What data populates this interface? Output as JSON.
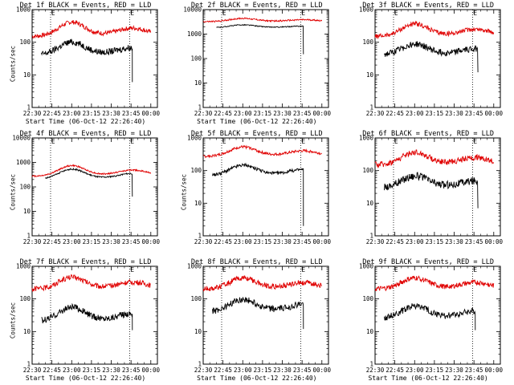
{
  "chart_data": [
    {
      "type": "line",
      "title": "Det 1f BLACK = Events, RED = LLD",
      "xlabel": "Start Time (06-Oct-12 22:26:40)",
      "ylabel": "Counts/sec",
      "yscale": "log",
      "ylim": [
        1,
        1000
      ],
      "x_ticks": [
        "22:30",
        "22:45",
        "23:00",
        "23:15",
        "23:30",
        "23:45",
        "00:00"
      ],
      "y_ticks": [
        "1",
        "10",
        "100",
        "1000"
      ],
      "markers": [
        "22:44",
        "23:44"
      ],
      "flag": "E",
      "series": [
        {
          "name": "LLD",
          "color": "#e00000",
          "start": "22:30",
          "end": "00:00",
          "base": 150,
          "amp": 2.6,
          "noise": 0.07
        },
        {
          "name": "Events",
          "color": "#000000",
          "start": "22:37",
          "end": "23:46",
          "base": 40,
          "amp": 2.4,
          "noise": 0.1,
          "drop": 6
        }
      ]
    },
    {
      "type": "line",
      "title": "Det 2f BLACK = Events, RED = LLD",
      "xlabel": "Start Time (06-Oct-12 22:26:40)",
      "ylabel": "",
      "yscale": "log",
      "ylim": [
        1,
        10000
      ],
      "x_ticks": [
        "22:30",
        "22:45",
        "23:00",
        "23:15",
        "23:30",
        "23:45",
        "00:00"
      ],
      "y_ticks": [
        "1",
        "10",
        "100",
        "1000",
        "10000"
      ],
      "markers": [
        "22:44",
        "23:44"
      ],
      "flag": "E",
      "series": [
        {
          "name": "LLD",
          "color": "#e00000",
          "start": "22:30",
          "end": "00:00",
          "base": 3200,
          "amp": 1.35,
          "noise": 0.03
        },
        {
          "name": "Events",
          "color": "#000000",
          "start": "22:40",
          "end": "23:46",
          "base": 1800,
          "amp": 1.3,
          "noise": 0.02,
          "drop": 150
        }
      ]
    },
    {
      "type": "line",
      "title": "Det 3f BLACK = Events, RED = LLD",
      "xlabel": "",
      "ylabel": "",
      "yscale": "log",
      "ylim": [
        1,
        1000
      ],
      "x_ticks": [
        "22:30",
        "22:45",
        "23:00",
        "23:15",
        "23:30",
        "23:45",
        "00:00"
      ],
      "y_ticks": [
        "1",
        "10",
        "100",
        "1000"
      ],
      "markers": [
        "22:44",
        "23:44"
      ],
      "flag": "E",
      "series": [
        {
          "name": "LLD",
          "color": "#e00000",
          "start": "22:30",
          "end": "00:00",
          "base": 150,
          "amp": 2.3,
          "noise": 0.07
        },
        {
          "name": "Events",
          "color": "#000000",
          "start": "22:37",
          "end": "23:48",
          "base": 40,
          "amp": 2.1,
          "noise": 0.1,
          "drop": 12
        }
      ]
    },
    {
      "type": "line",
      "title": "Det 4f BLACK = Events, RED = LLD",
      "xlabel": "",
      "ylabel": "Counts/sec",
      "yscale": "log",
      "ylim": [
        1,
        10000
      ],
      "x_ticks": [
        "22:30",
        "22:45",
        "23:00",
        "23:15",
        "23:30",
        "23:45",
        "00:00"
      ],
      "y_ticks": [
        "1",
        "10",
        "100",
        "1000",
        "10000"
      ],
      "markers": [
        "22:44",
        "23:44"
      ],
      "flag": "E",
      "series": [
        {
          "name": "LLD",
          "color": "#e00000",
          "start": "22:30",
          "end": "00:00",
          "base": 270,
          "amp": 2.6,
          "noise": 0.03
        },
        {
          "name": "Events",
          "color": "#000000",
          "start": "22:40",
          "end": "23:46",
          "base": 200,
          "amp": 2.5,
          "noise": 0.03,
          "drop": 40
        }
      ]
    },
    {
      "type": "line",
      "title": "Det 5f BLACK = Events, RED = LLD",
      "xlabel": "",
      "ylabel": "Counts/sec",
      "yscale": "log",
      "ylim": [
        1,
        1000
      ],
      "x_ticks": [
        "22:30",
        "22:45",
        "23:00",
        "23:15",
        "23:30",
        "23:45",
        "00:00"
      ],
      "y_ticks": [
        "1",
        "10",
        "100",
        "1000"
      ],
      "markers": [
        "22:44",
        "23:44"
      ],
      "flag": "E",
      "series": [
        {
          "name": "LLD",
          "color": "#e00000",
          "start": "22:30",
          "end": "00:00",
          "base": 270,
          "amp": 1.9,
          "noise": 0.04
        },
        {
          "name": "Events",
          "color": "#000000",
          "start": "22:37",
          "end": "23:46",
          "base": 70,
          "amp": 2.0,
          "noise": 0.05,
          "drop": 2
        }
      ]
    },
    {
      "type": "line",
      "title": "Det 6f BLACK = Events, RED = LLD",
      "xlabel": "",
      "ylabel": "",
      "yscale": "log",
      "ylim": [
        1,
        1000
      ],
      "x_ticks": [
        "22:30",
        "22:45",
        "23:00",
        "23:15",
        "23:30",
        "23:45",
        "00:00"
      ],
      "y_ticks": [
        "1",
        "10",
        "100",
        "1000"
      ],
      "markers": [
        "22:44",
        "23:44"
      ],
      "flag": "E",
      "series": [
        {
          "name": "LLD",
          "color": "#e00000",
          "start": "22:30",
          "end": "00:00",
          "base": 150,
          "amp": 2.3,
          "noise": 0.09
        },
        {
          "name": "Events",
          "color": "#000000",
          "start": "22:37",
          "end": "23:48",
          "base": 30,
          "amp": 2.2,
          "noise": 0.12,
          "drop": 7
        }
      ]
    },
    {
      "type": "line",
      "title": "Det 7f BLACK = Events, RED = LLD",
      "xlabel": "Start Time (06-Oct-12 22:26:40)",
      "ylabel": "Counts/sec",
      "yscale": "log",
      "ylim": [
        1,
        1000
      ],
      "x_ticks": [
        "22:30",
        "22:45",
        "23:00",
        "23:15",
        "23:30",
        "23:45",
        "00:00"
      ],
      "y_ticks": [
        "1",
        "10",
        "100",
        "1000"
      ],
      "markers": [
        "22:44",
        "23:44"
      ],
      "flag": "E",
      "series": [
        {
          "name": "LLD",
          "color": "#e00000",
          "start": "22:30",
          "end": "00:00",
          "base": 200,
          "amp": 2.2,
          "noise": 0.08
        },
        {
          "name": "Events",
          "color": "#000000",
          "start": "22:37",
          "end": "23:46",
          "base": 20,
          "amp": 2.6,
          "noise": 0.1,
          "drop": 11
        }
      ]
    },
    {
      "type": "line",
      "title": "Det 8f BLACK = Events, RED = LLD",
      "xlabel": "Start Time (06-Oct-12 22:26:40)",
      "ylabel": "",
      "yscale": "log",
      "ylim": [
        1,
        1000
      ],
      "x_ticks": [
        "22:30",
        "22:45",
        "23:00",
        "23:15",
        "23:30",
        "23:45",
        "00:00"
      ],
      "y_ticks": [
        "1",
        "10",
        "100",
        "1000"
      ],
      "markers": [
        "22:44",
        "23:44"
      ],
      "flag": "E",
      "series": [
        {
          "name": "LLD",
          "color": "#e00000",
          "start": "22:30",
          "end": "00:00",
          "base": 200,
          "amp": 2.1,
          "noise": 0.08
        },
        {
          "name": "Events",
          "color": "#000000",
          "start": "22:37",
          "end": "23:46",
          "base": 40,
          "amp": 2.3,
          "noise": 0.1,
          "drop": 12
        }
      ]
    },
    {
      "type": "line",
      "title": "Det 9f BLACK = Events, RED = LLD",
      "xlabel": "Start Time (06-Oct-12 22:26:40)",
      "ylabel": "",
      "yscale": "log",
      "ylim": [
        1,
        1000
      ],
      "x_ticks": [
        "22:30",
        "22:45",
        "23:00",
        "23:15",
        "23:30",
        "23:45",
        "00:00"
      ],
      "y_ticks": [
        "1",
        "10",
        "100",
        "1000"
      ],
      "markers": [
        "22:44",
        "23:44"
      ],
      "flag": "E",
      "series": [
        {
          "name": "LLD",
          "color": "#e00000",
          "start": "22:30",
          "end": "00:00",
          "base": 200,
          "amp": 2.1,
          "noise": 0.08
        },
        {
          "name": "Events",
          "color": "#000000",
          "start": "22:37",
          "end": "23:46",
          "base": 25,
          "amp": 2.3,
          "noise": 0.1,
          "drop": 11
        }
      ]
    }
  ]
}
